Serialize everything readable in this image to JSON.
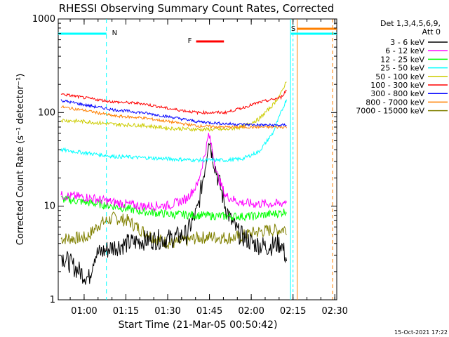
{
  "chart_data": {
    "type": "line",
    "title": "RHESSI Observing Summary Count Rates, Corrected",
    "xlabel": "Start Time (21-Mar-05 00:50:42)",
    "ylabel": "Corrected Count Rate (s⁻¹ detector⁻¹)",
    "y_scale": "log",
    "ylim": [
      1,
      1000
    ],
    "xlim_minutes": [
      0,
      100
    ],
    "x_ticks": [
      {
        "label": "01:00",
        "minute": 9.3
      },
      {
        "label": "01:15",
        "minute": 24.3
      },
      {
        "label": "01:30",
        "minute": 39.3
      },
      {
        "label": "01:45",
        "minute": 54.3
      },
      {
        "label": "02:00",
        "minute": 69.3
      },
      {
        "label": "02:15",
        "minute": 84.3
      },
      {
        "label": "02:30",
        "minute": 99.3
      }
    ],
    "y_ticks": [
      "1",
      "10",
      "100",
      "1000"
    ],
    "legend_header": [
      "Det 1,3,4,5,6,9,",
      "Att 0"
    ],
    "legend_position": "right",
    "series": [
      {
        "name": "3 - 6 keV",
        "color": "#000000",
        "points": [
          [
            1,
            3
          ],
          [
            6,
            2.2
          ],
          [
            11,
            1.7
          ],
          [
            13,
            3
          ],
          [
            20,
            3.7
          ],
          [
            30,
            4.3
          ],
          [
            40,
            4.5
          ],
          [
            46,
            5
          ],
          [
            50,
            9
          ],
          [
            53,
            30
          ],
          [
            54,
            55
          ],
          [
            55,
            40
          ],
          [
            57,
            22
          ],
          [
            60,
            10
          ],
          [
            62,
            7
          ],
          [
            65,
            5
          ],
          [
            70,
            4
          ],
          [
            75,
            3.7
          ],
          [
            80,
            4
          ],
          [
            82,
            2.7
          ]
        ]
      },
      {
        "name": "6 - 12 keV",
        "color": "#ff00ff",
        "points": [
          [
            1,
            13
          ],
          [
            10,
            12.5
          ],
          [
            20,
            11
          ],
          [
            30,
            10
          ],
          [
            40,
            10.2
          ],
          [
            46,
            12
          ],
          [
            50,
            17
          ],
          [
            53,
            40
          ],
          [
            54,
            58
          ],
          [
            55,
            45
          ],
          [
            57,
            22
          ],
          [
            60,
            13
          ],
          [
            65,
            11
          ],
          [
            70,
            10.6
          ],
          [
            80,
            10.6
          ],
          [
            82,
            11.5
          ]
        ]
      },
      {
        "name": "12 - 25 keV",
        "color": "#00ff00",
        "points": [
          [
            1,
            12
          ],
          [
            10,
            11
          ],
          [
            20,
            10
          ],
          [
            30,
            8.8
          ],
          [
            40,
            8.2
          ],
          [
            50,
            8
          ],
          [
            60,
            7.8
          ],
          [
            70,
            7.8
          ],
          [
            80,
            8.5
          ],
          [
            82,
            9
          ]
        ]
      },
      {
        "name": "25 - 50 keV",
        "color": "#00ffff",
        "points": [
          [
            1,
            40
          ],
          [
            10,
            37
          ],
          [
            20,
            34
          ],
          [
            30,
            33
          ],
          [
            40,
            32
          ],
          [
            50,
            31
          ],
          [
            60,
            31
          ],
          [
            66,
            32
          ],
          [
            72,
            38
          ],
          [
            77,
            60
          ],
          [
            80,
            100
          ],
          [
            82,
            140
          ]
        ]
      },
      {
        "name": "50 - 100 keV",
        "color": "#cccc00",
        "points": [
          [
            1,
            83
          ],
          [
            10,
            80
          ],
          [
            20,
            75
          ],
          [
            30,
            73
          ],
          [
            40,
            68
          ],
          [
            50,
            66
          ],
          [
            60,
            66
          ],
          [
            66,
            70
          ],
          [
            72,
            85
          ],
          [
            77,
            120
          ],
          [
            80,
            160
          ],
          [
            82,
            220
          ]
        ]
      },
      {
        "name": "100 - 300 keV",
        "color": "#ff0000",
        "points": [
          [
            1,
            158
          ],
          [
            10,
            143
          ],
          [
            20,
            130
          ],
          [
            30,
            125
          ],
          [
            40,
            110
          ],
          [
            50,
            100
          ],
          [
            60,
            100
          ],
          [
            66,
            112
          ],
          [
            72,
            128
          ],
          [
            77,
            138
          ],
          [
            80,
            145
          ],
          [
            82,
            175
          ]
        ]
      },
      {
        "name": "300 - 800 keV",
        "color": "#0000ff",
        "points": [
          [
            1,
            135
          ],
          [
            10,
            120
          ],
          [
            20,
            107
          ],
          [
            30,
            100
          ],
          [
            40,
            90
          ],
          [
            50,
            80
          ],
          [
            60,
            76
          ],
          [
            70,
            74
          ],
          [
            80,
            73
          ],
          [
            82,
            74
          ]
        ]
      },
      {
        "name": "800 - 7000 keV",
        "color": "#ff8000",
        "points": [
          [
            1,
            115
          ],
          [
            10,
            105
          ],
          [
            20,
            92
          ],
          [
            30,
            88
          ],
          [
            40,
            80
          ],
          [
            50,
            72
          ],
          [
            60,
            70
          ],
          [
            70,
            70
          ],
          [
            80,
            70
          ],
          [
            82,
            70
          ]
        ]
      },
      {
        "name": "7000 - 15000 keV",
        "color": "#808000",
        "points": [
          [
            1,
            4.5
          ],
          [
            10,
            4.6
          ],
          [
            15,
            6.5
          ],
          [
            20,
            7.5
          ],
          [
            25,
            7
          ],
          [
            30,
            5.5
          ],
          [
            35,
            4.5
          ],
          [
            40,
            4
          ],
          [
            45,
            4.2
          ],
          [
            50,
            4.6
          ],
          [
            55,
            4.7
          ],
          [
            60,
            4.6
          ],
          [
            65,
            4.7
          ],
          [
            70,
            5.2
          ],
          [
            75,
            5.5
          ],
          [
            80,
            5.6
          ],
          [
            82,
            5.8
          ]
        ]
      }
    ],
    "markers": {
      "N_label": "N",
      "F_label": "F",
      "S_label": "S"
    }
  },
  "footer_timestamp": "15-Oct-2021 17:22"
}
